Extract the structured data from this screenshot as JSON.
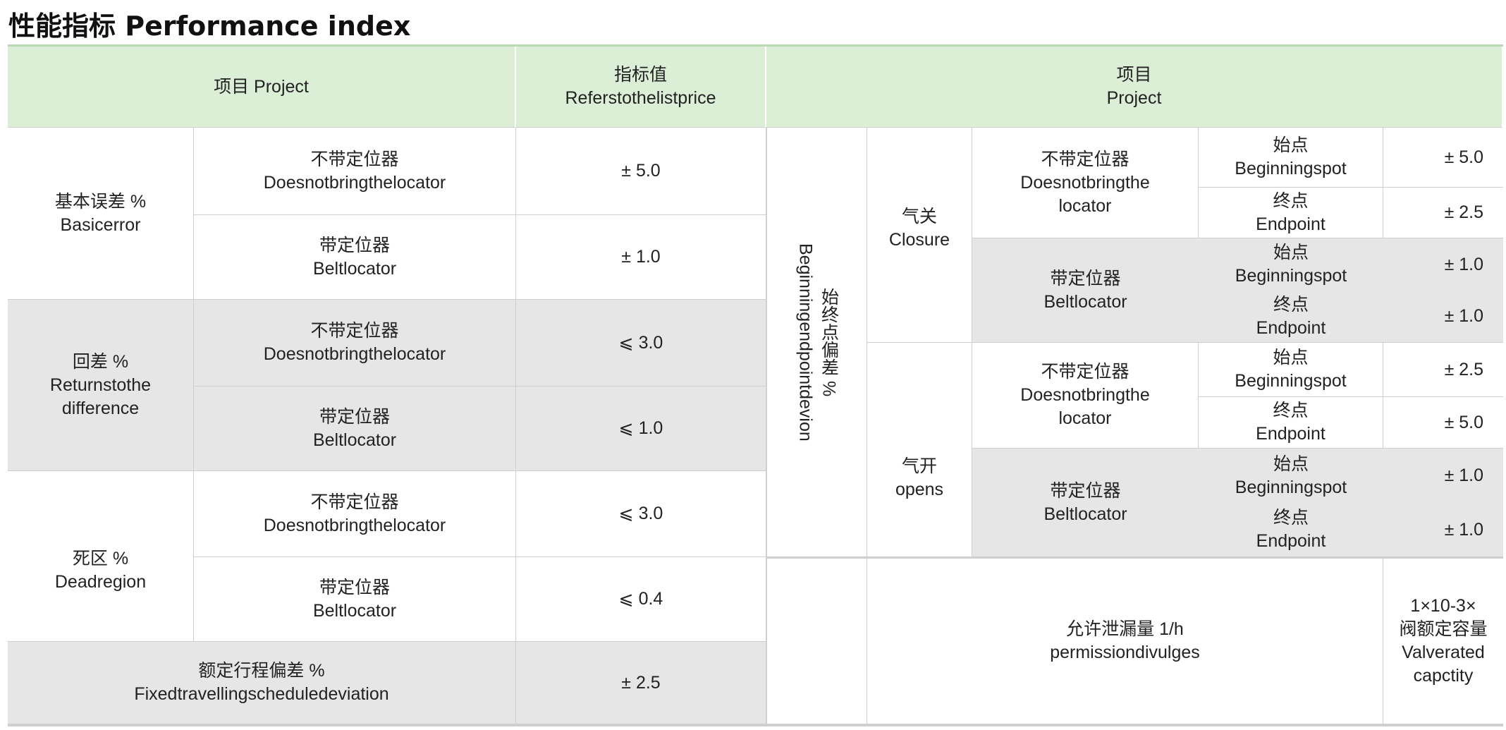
{
  "title": "性能指标 Performance index",
  "header": {
    "left_project": "项目 Project",
    "value_cn": "指标值",
    "value_en": "Referstothelistprice",
    "right_project_cn": "项目",
    "right_project_en": "Project"
  },
  "left_rows": [
    {
      "group_cn": "基本误差 %",
      "group_en": "Basicerror",
      "items": [
        {
          "cn": "不带定位器",
          "en": "Doesnotbringthelocator",
          "value": "± 5.0"
        },
        {
          "cn": "带定位器",
          "en": "Beltlocator",
          "value": "± 1.0"
        }
      ]
    },
    {
      "group_cn": "回差 %",
      "group_en": "Returnstothe difference",
      "items": [
        {
          "cn": "不带定位器",
          "en": "Doesnotbringthelocator",
          "value": "⩽ 3.0"
        },
        {
          "cn": "带定位器",
          "en": "Beltlocator",
          "value": "⩽ 1.0"
        }
      ]
    },
    {
      "group_cn": "死区 %",
      "group_en": "Deadregion",
      "items": [
        {
          "cn": "不带定位器",
          "en": "Doesnotbringthelocator",
          "value": "⩽ 3.0"
        },
        {
          "cn": "带定位器",
          "en": "Beltlocator",
          "value": "⩽ 0.4"
        }
      ]
    },
    {
      "group_cn": "额定行程偏差 %",
      "group_en": "Fixedtravellingscheduledeviation",
      "value": "± 2.5"
    }
  ],
  "right": {
    "group_cn": "始终点偏差 %",
    "group_en": "Beginningendpointdevion",
    "closure": {
      "cn": "气关",
      "en": "Closure",
      "no_locator": {
        "cn": "不带定位器",
        "en": "Doesnotbringthe locator",
        "begin": {
          "cn": "始点",
          "en": "Beginningspot",
          "value": "± 5.0"
        },
        "end": {
          "cn": "终点",
          "en": "Endpoint",
          "value": "± 2.5"
        }
      },
      "locator": {
        "cn": "带定位器",
        "en": "Beltlocator",
        "begin": {
          "cn": "始点",
          "en": "Beginningspot",
          "value": "± 1.0"
        },
        "end": {
          "cn": "终点",
          "en": "Endpoint",
          "value": "± 1.0"
        }
      }
    },
    "opens": {
      "cn": "气开",
      "en": "opens",
      "no_locator": {
        "cn": "不带定位器",
        "en": "Doesnotbringthe locator",
        "begin": {
          "cn": "始点",
          "en": "Beginningspot",
          "value": "± 2.5"
        },
        "end": {
          "cn": "终点",
          "en": "Endpoint",
          "value": "± 5.0"
        }
      },
      "locator": {
        "cn": "带定位器",
        "en": "Beltlocator",
        "begin": {
          "cn": "始点",
          "en": "Beginningspot",
          "value": "± 1.0"
        },
        "end": {
          "cn": "终点",
          "en": "Endpoint",
          "value": "± 1.0"
        }
      }
    },
    "leakage": {
      "cn": "允许泄漏量 1/h",
      "en": "permissiondivulges",
      "value_l1": "1×10-3×",
      "value_l2": "阀额定容量",
      "value_l3": "Valverated",
      "value_l4": "capctity"
    }
  }
}
